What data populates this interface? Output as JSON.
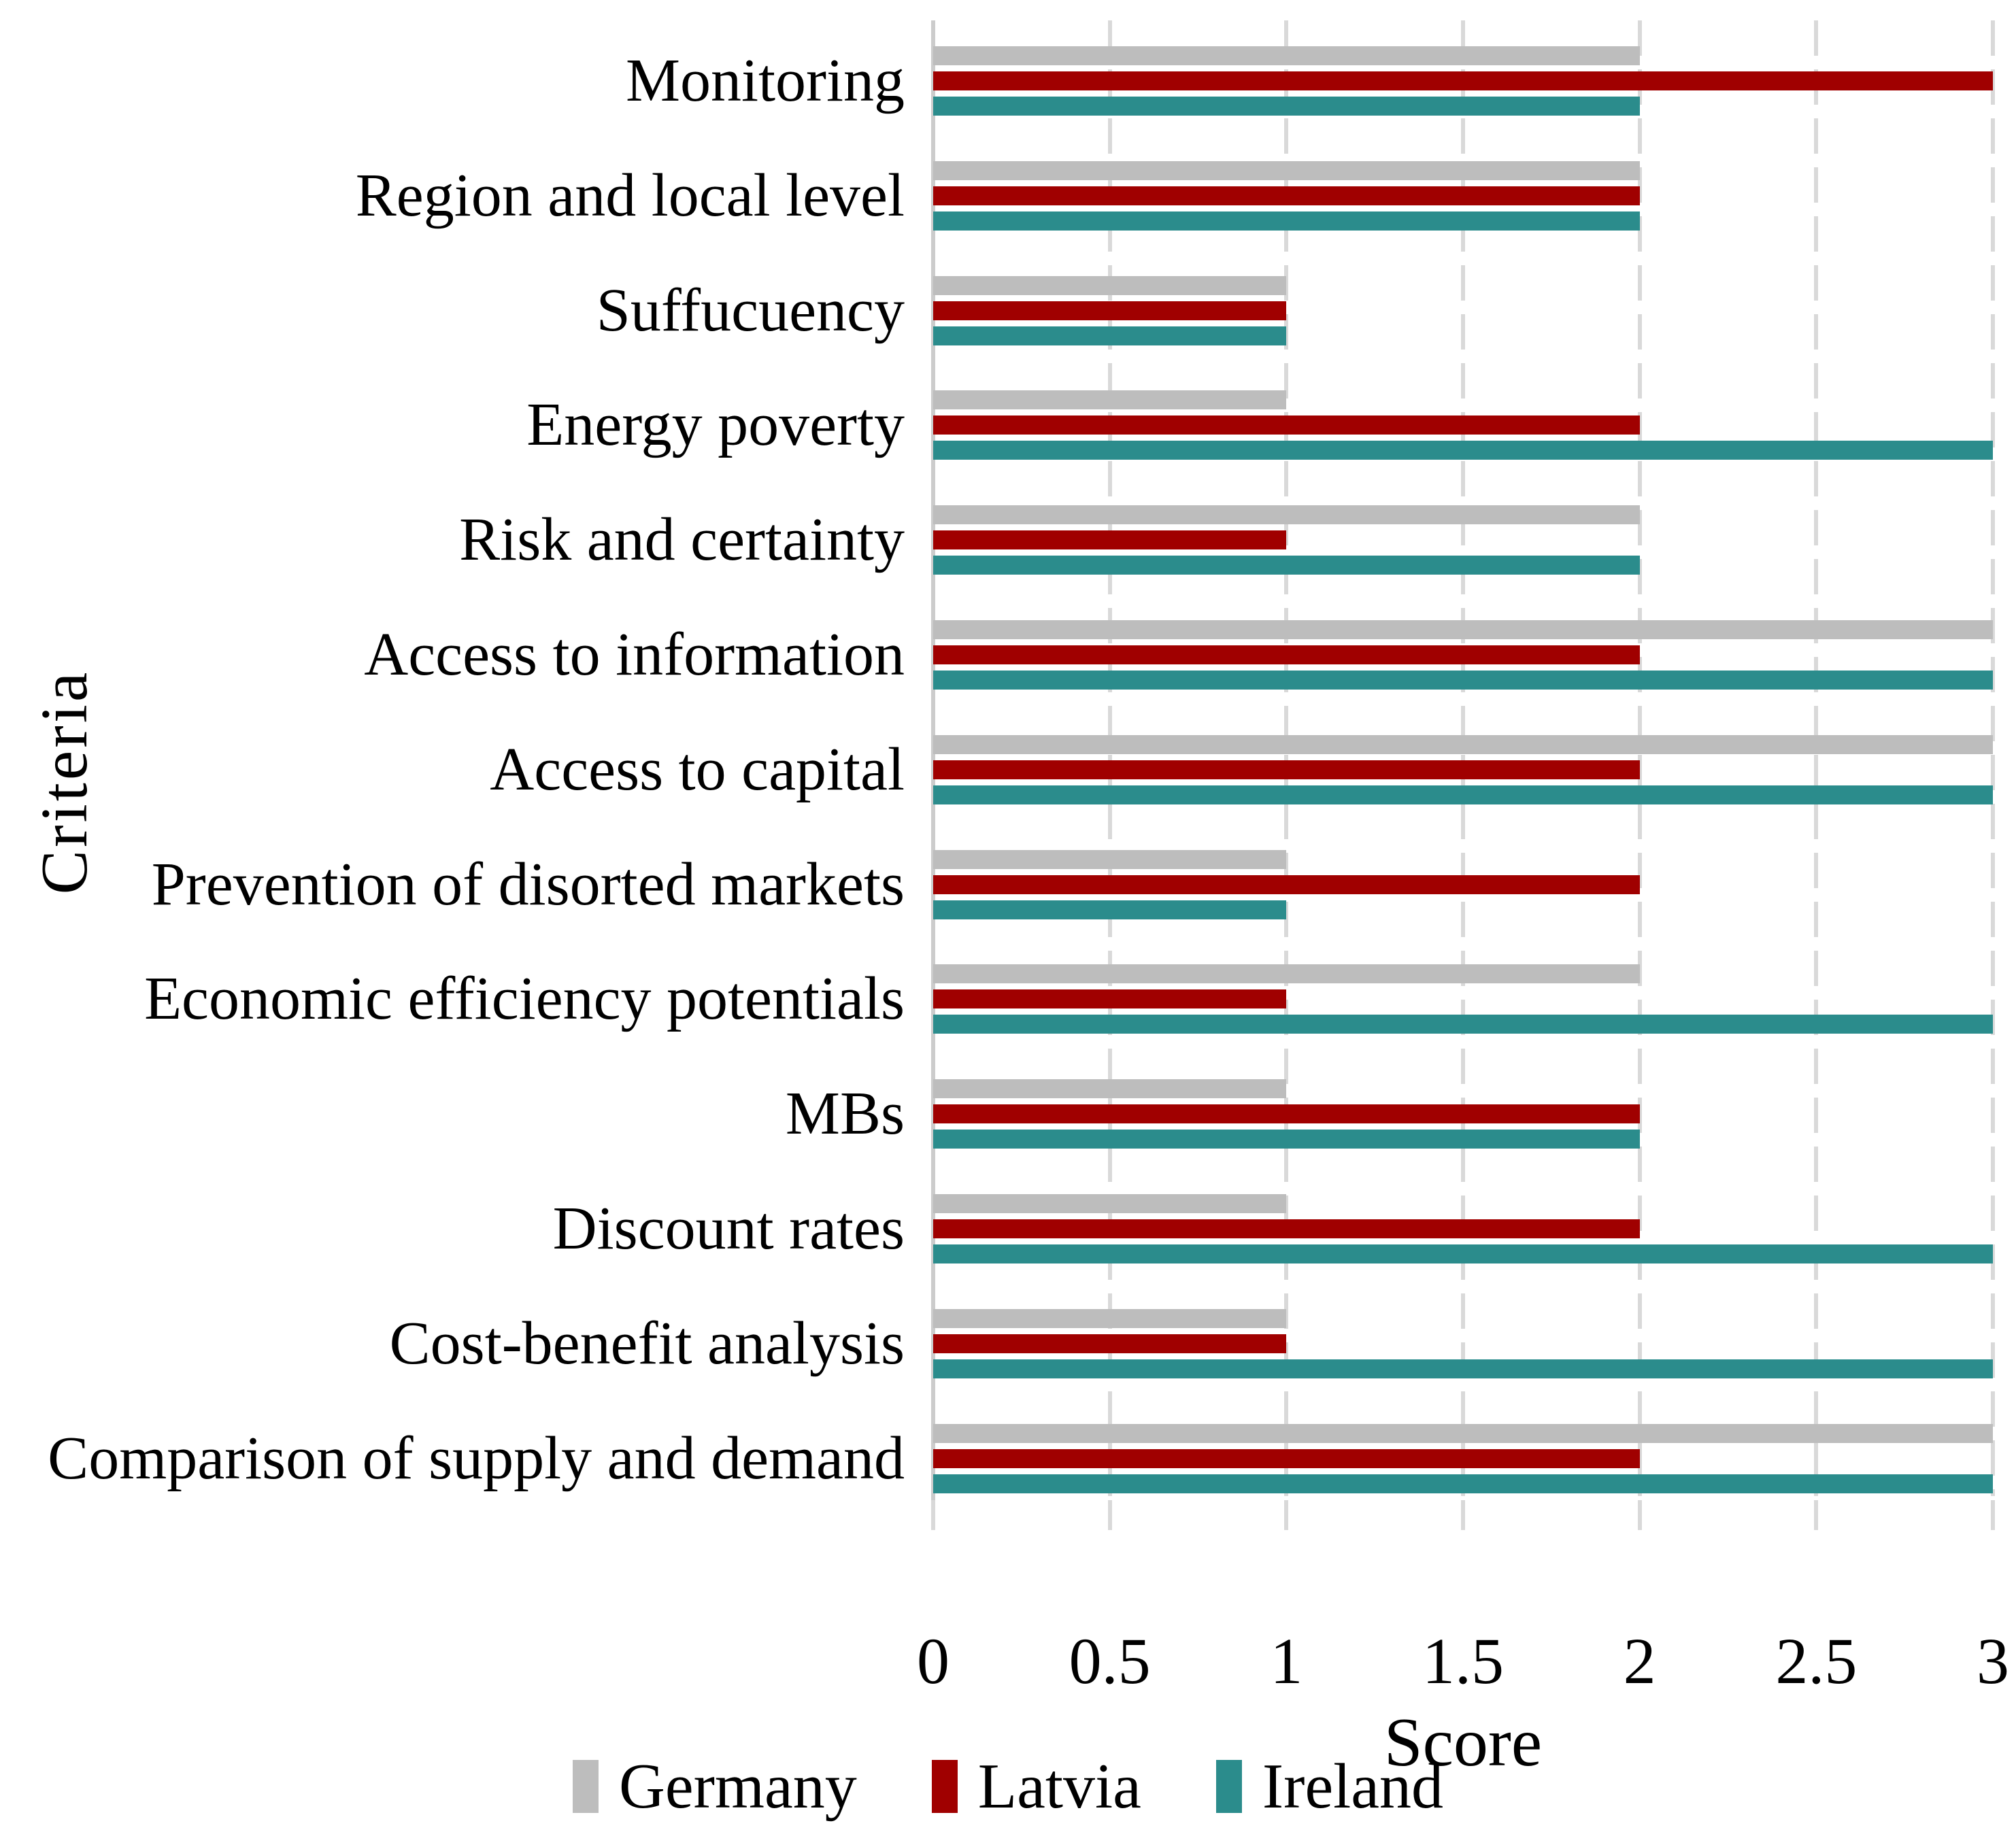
{
  "chart_data": {
    "type": "bar",
    "orientation": "horizontal",
    "title": "",
    "xlabel": "Score",
    "ylabel": "Criteria",
    "xlim": [
      0,
      3
    ],
    "xticks": [
      0,
      0.5,
      1,
      1.5,
      2,
      2.5,
      3
    ],
    "xtick_labels": [
      "0",
      "0.5",
      "1",
      "1.5",
      "2",
      "2.5",
      "3"
    ],
    "grid": "vertical-dashed",
    "grid_color": "#d9d9d9",
    "legend_position": "bottom-center",
    "categories": [
      "Monitoring",
      "Region and local level",
      "Suffucuency",
      "Energy poverty",
      "Risk and certainty",
      "Access to information",
      "Access to capital",
      "Prevention of disorted markets",
      "Economic efficiency potentials",
      "MBs",
      "Discount rates",
      "Cost-benefit analysis",
      "Comparison of supply and demand"
    ],
    "series": [
      {
        "name": "Germany",
        "color": "#bdbdbd",
        "values": [
          2,
          2,
          1,
          1,
          2,
          3,
          3,
          1,
          2,
          1,
          1,
          1,
          3
        ]
      },
      {
        "name": "Latvia",
        "color": "#a00000",
        "values": [
          3,
          2,
          1,
          2,
          1,
          2,
          2,
          2,
          1,
          2,
          2,
          1,
          2
        ]
      },
      {
        "name": "Ireland",
        "color": "#2b8c8c",
        "values": [
          2,
          2,
          1,
          3,
          2,
          3,
          3,
          1,
          3,
          2,
          3,
          3,
          3
        ]
      }
    ]
  }
}
